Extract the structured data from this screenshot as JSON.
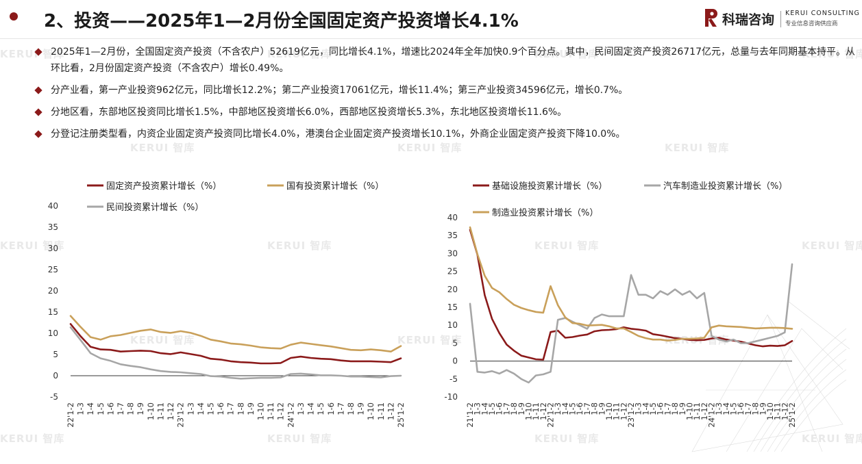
{
  "header": {
    "title": "2、投资——2025年1—2月份全国固定资产投资增长4.1%",
    "logo_cn": "科瑞咨询",
    "logo_en": "KERUI CONSULTING",
    "logo_sub": "专业信息咨询供应商",
    "logo_icon": "kerui-logo-icon"
  },
  "watermark_text": "KERUI 智库",
  "bullets": [
    "2025年1—2月份，全国固定资产投资（不含农户）52619亿元，同比增长4.1%，增速比2024年全年加快0.9个百分点。其中，民间固定资产投资26717亿元，总量与去年同期基本持平。从环比看，2月份固定资产投资（不含农户）增长0.49%。",
    "分产业看，第一产业投资962亿元，同比增长12.2%；第二产业投资17061亿元，增长11.4%；第三产业投资34596亿元，增长0.7%。",
    "分地区看，东部地区投资同比增长1.5%，中部地区投资增长6.0%，西部地区投资增长5.3%，东北地区投资增长11.6%。",
    "分登记注册类型看，内资企业固定资产投资同比增长4.0%，港澳台企业固定资产投资增长10.1%，外商企业固定资产投资下降10.0%。"
  ],
  "colors": {
    "accent": "#8b1a1a",
    "gold": "#c9a05a",
    "gray": "#a6a6a6"
  },
  "chart_data": [
    {
      "type": "line",
      "title": "",
      "legend_position": "top",
      "ylim": [
        -5,
        40
      ],
      "yticks": [
        -5,
        0,
        5,
        10,
        15,
        20,
        25,
        30,
        35,
        40
      ],
      "categories": [
        "22'1-2",
        "1-3",
        "1-4",
        "1-5",
        "1-6",
        "1-7",
        "1-8",
        "1-9",
        "1-10",
        "1-11",
        "1-12",
        "23'1-2",
        "1-3",
        "1-4",
        "1-5",
        "1-6",
        "1-7",
        "1-8",
        "1-9",
        "1-10",
        "1-11",
        "1-12",
        "24'1-2",
        "1-3",
        "1-4",
        "1-5",
        "1-6",
        "1-7",
        "1-8",
        "1-9",
        "1-10",
        "1-11",
        "1-12",
        "25'1-2"
      ],
      "series": [
        {
          "name": "固定资产投资累计增长（%）",
          "color": "#8b1a1a",
          "values": [
            12.2,
            9.3,
            6.8,
            6.2,
            6.1,
            5.7,
            5.8,
            5.9,
            5.8,
            5.3,
            5.1,
            5.5,
            5.1,
            4.7,
            4.0,
            3.8,
            3.4,
            3.2,
            3.1,
            2.9,
            2.9,
            3.0,
            4.2,
            4.5,
            4.2,
            4.0,
            3.9,
            3.6,
            3.4,
            3.4,
            3.4,
            3.3,
            3.2,
            4.1
          ]
        },
        {
          "name": "国有投资累计增长（%）",
          "color": "#c9a05a",
          "values": [
            14.1,
            11.5,
            9.1,
            8.5,
            9.3,
            9.6,
            10.1,
            10.6,
            10.9,
            10.3,
            10.1,
            10.5,
            10.1,
            9.4,
            8.5,
            8.1,
            7.6,
            7.4,
            7.1,
            6.7,
            6.5,
            6.4,
            7.3,
            7.8,
            7.5,
            7.2,
            6.9,
            6.5,
            6.1,
            6.0,
            6.2,
            6.0,
            5.7,
            7.0
          ]
        },
        {
          "name": "民间投资累计增长（%）",
          "color": "#a6a6a6",
          "values": [
            11.4,
            8.4,
            5.3,
            4.1,
            3.5,
            2.7,
            2.3,
            2.0,
            1.5,
            1.1,
            0.9,
            0.8,
            0.6,
            0.4,
            -0.1,
            -0.2,
            -0.5,
            -0.7,
            -0.6,
            -0.5,
            -0.5,
            -0.4,
            0.4,
            0.5,
            0.3,
            0.1,
            0.1,
            0.0,
            -0.2,
            -0.2,
            -0.3,
            -0.4,
            -0.1,
            0.0
          ]
        }
      ]
    },
    {
      "type": "line",
      "title": "",
      "legend_position": "top",
      "ylim": [
        -10,
        40
      ],
      "yticks": [
        -10,
        -5,
        0,
        5,
        10,
        15,
        20,
        25,
        30,
        35,
        40
      ],
      "categories": [
        "21'1-2",
        "1-3",
        "1-4",
        "1-5",
        "1-6",
        "1-7",
        "1-8",
        "1-9",
        "1-10",
        "1-11",
        "1-12",
        "22'1-2",
        "1-3",
        "1-4",
        "1-5",
        "1-6",
        "1-7",
        "1-8",
        "1-9",
        "1-10",
        "1-11",
        "1-12",
        "23'1-2",
        "1-3",
        "1-4",
        "1-5",
        "1-6",
        "1-7",
        "1-8",
        "1-9",
        "1-10",
        "1-11",
        "1-12",
        "24'1-2",
        "1-3",
        "1-4",
        "1-5",
        "1-6",
        "1-7",
        "1-8",
        "1-9",
        "1-10",
        "1-11",
        "1-12",
        "25'1-2"
      ],
      "series": [
        {
          "name": "基础设施投资累计增长（%）",
          "color": "#8b1a1a",
          "values": [
            36.6,
            29.7,
            18.4,
            11.8,
            7.8,
            4.6,
            2.9,
            1.5,
            1.0,
            0.5,
            0.4,
            8.1,
            8.5,
            6.5,
            6.7,
            7.1,
            7.4,
            8.3,
            8.6,
            8.7,
            8.9,
            9.4,
            9.0,
            8.8,
            8.5,
            7.5,
            7.2,
            6.8,
            6.4,
            6.2,
            5.9,
            5.8,
            5.9,
            6.3,
            6.5,
            6.0,
            5.7,
            5.4,
            4.9,
            4.4,
            4.1,
            4.3,
            4.2,
            4.4,
            5.6
          ]
        },
        {
          "name": "汽车制造业投资累计增长（%）",
          "color": "#a6a6a6",
          "values": [
            16.0,
            -3.0,
            -3.2,
            -2.8,
            -3.5,
            -2.5,
            -3.5,
            -5.0,
            -6.0,
            -4.0,
            -3.7,
            -3.0,
            11.5,
            12.0,
            11.0,
            10.0,
            9.0,
            12.0,
            13.0,
            12.5,
            12.5,
            12.5,
            24.0,
            18.5,
            18.5,
            17.5,
            19.5,
            18.5,
            20.0,
            18.5,
            19.5,
            17.5,
            19.0,
            7.0,
            6.0,
            5.5,
            6.0,
            5.0,
            5.0,
            5.5,
            6.0,
            6.5,
            7.0,
            8.0,
            27.0
          ]
        },
        {
          "name": "制造业投资累计增长（%）",
          "color": "#c9a05a",
          "values": [
            37.3,
            29.8,
            23.8,
            20.4,
            19.2,
            17.3,
            15.7,
            14.8,
            14.2,
            13.7,
            13.5,
            20.9,
            15.6,
            12.2,
            10.6,
            10.4,
            9.9,
            10.0,
            10.1,
            9.7,
            9.1,
            9.1,
            8.1,
            7.0,
            6.4,
            6.0,
            6.0,
            5.7,
            5.9,
            6.2,
            6.2,
            6.3,
            6.5,
            9.4,
            9.9,
            9.7,
            9.6,
            9.5,
            9.3,
            9.1,
            9.2,
            9.3,
            9.3,
            9.2,
            9.0
          ]
        }
      ]
    }
  ]
}
